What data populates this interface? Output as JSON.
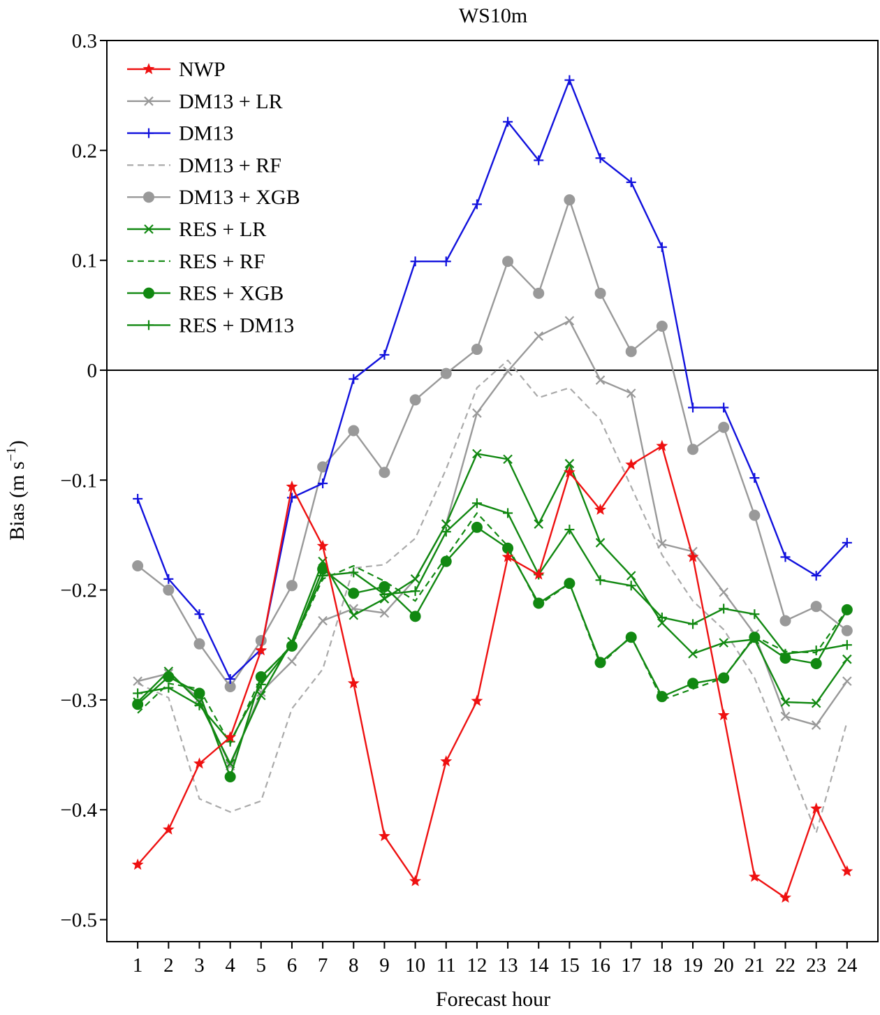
{
  "chart_data": {
    "type": "line",
    "title": "WS10m",
    "xlabel": "Forecast hour",
    "ylabel": "Bias (m s",
    "ylabel_superscript": "−1",
    "ylabel_suffix": ")",
    "x": [
      1,
      2,
      3,
      4,
      5,
      6,
      7,
      8,
      9,
      10,
      11,
      12,
      13,
      14,
      15,
      16,
      17,
      18,
      19,
      20,
      21,
      22,
      23,
      24
    ],
    "xlim": [
      0,
      25
    ],
    "ylim": [
      -0.52,
      0.3
    ],
    "yticks": [
      0.3,
      0.2,
      0.1,
      0,
      -0.1,
      -0.2,
      -0.3,
      -0.4,
      -0.5
    ],
    "ytick_labels": [
      "0.3",
      "0.2",
      "0.1",
      "0",
      "−0.1",
      "−0.2",
      "−0.3",
      "−0.4",
      "−0.5"
    ],
    "zero_line": true,
    "grid": false,
    "legend_position": "top-left",
    "series": [
      {
        "name": "NWP",
        "color": "#ee1111",
        "dash": "solid",
        "marker": "star",
        "values": [
          -0.45,
          -0.418,
          -0.358,
          -0.334,
          -0.255,
          -0.106,
          -0.16,
          -0.285,
          -0.424,
          -0.465,
          -0.356,
          -0.301,
          -0.17,
          -0.186,
          -0.093,
          -0.127,
          -0.086,
          -0.069,
          -0.17,
          -0.314,
          -0.461,
          -0.48,
          -0.399,
          -0.456
        ]
      },
      {
        "name": "DM13 + LR",
        "color": "#999999",
        "dash": "solid",
        "marker": "x",
        "values": [
          -0.283,
          -0.276,
          -0.299,
          -0.36,
          -0.293,
          -0.265,
          -0.228,
          -0.217,
          -0.221,
          -0.19,
          -0.14,
          -0.039,
          -0.001,
          0.031,
          0.045,
          -0.009,
          -0.021,
          -0.158,
          -0.165,
          -0.202,
          -0.24,
          -0.315,
          -0.323,
          -0.283
        ]
      },
      {
        "name": "DM13",
        "color": "#1111dd",
        "dash": "solid",
        "marker": "plus",
        "values": [
          -0.117,
          -0.19,
          -0.222,
          -0.281,
          -0.254,
          -0.116,
          -0.103,
          -0.008,
          0.014,
          0.099,
          0.099,
          0.151,
          0.226,
          0.191,
          0.264,
          0.193,
          0.171,
          0.112,
          -0.034,
          -0.034,
          -0.098,
          -0.17,
          -0.187,
          -0.157
        ]
      },
      {
        "name": "DM13 + RF",
        "color": "#aaaaaa",
        "dash": "dashed",
        "marker": "none",
        "values": [
          -0.285,
          -0.298,
          -0.39,
          -0.402,
          -0.392,
          -0.308,
          -0.272,
          -0.18,
          -0.177,
          -0.153,
          -0.09,
          -0.016,
          0.009,
          -0.025,
          -0.016,
          -0.045,
          -0.106,
          -0.168,
          -0.21,
          -0.236,
          -0.28,
          -0.349,
          -0.421,
          -0.32
        ]
      },
      {
        "name": "DM13 + XGB",
        "color": "#999999",
        "dash": "solid",
        "marker": "circle",
        "values": [
          -0.178,
          -0.2,
          -0.249,
          -0.288,
          -0.246,
          -0.196,
          -0.088,
          -0.055,
          -0.093,
          -0.027,
          -0.003,
          0.019,
          0.099,
          0.07,
          0.155,
          0.07,
          0.017,
          0.04,
          -0.072,
          -0.052,
          -0.132,
          -0.228,
          -0.215,
          -0.237
        ]
      },
      {
        "name": "RES + LR",
        "color": "#118811",
        "dash": "solid",
        "marker": "x",
        "values": [
          -0.302,
          -0.274,
          -0.302,
          -0.358,
          -0.296,
          -0.247,
          -0.174,
          -0.223,
          -0.208,
          -0.19,
          -0.14,
          -0.076,
          -0.081,
          -0.14,
          -0.085,
          -0.157,
          -0.187,
          -0.23,
          -0.258,
          -0.248,
          -0.245,
          -0.302,
          -0.303,
          -0.263
        ]
      },
      {
        "name": "RES + RF",
        "color": "#118811",
        "dash": "dashed",
        "marker": "none",
        "values": [
          -0.312,
          -0.285,
          -0.29,
          -0.34,
          -0.28,
          -0.25,
          -0.19,
          -0.178,
          -0.192,
          -0.21,
          -0.17,
          -0.13,
          -0.16,
          -0.214,
          -0.194,
          -0.268,
          -0.242,
          -0.3,
          -0.29,
          -0.28,
          -0.242,
          -0.256,
          -0.257,
          -0.218
        ]
      },
      {
        "name": "RES + XGB",
        "color": "#118811",
        "dash": "solid",
        "marker": "circle",
        "values": [
          -0.304,
          -0.279,
          -0.294,
          -0.37,
          -0.279,
          -0.251,
          -0.181,
          -0.203,
          -0.197,
          -0.224,
          -0.174,
          -0.143,
          -0.162,
          -0.212,
          -0.194,
          -0.266,
          -0.243,
          -0.297,
          -0.285,
          -0.28,
          -0.243,
          -0.262,
          -0.267,
          -0.218
        ]
      },
      {
        "name": "RES + DM13",
        "color": "#118811",
        "dash": "solid",
        "marker": "plus",
        "values": [
          -0.294,
          -0.289,
          -0.305,
          -0.338,
          -0.286,
          -0.25,
          -0.187,
          -0.184,
          -0.204,
          -0.201,
          -0.147,
          -0.121,
          -0.13,
          -0.186,
          -0.145,
          -0.191,
          -0.196,
          -0.225,
          -0.231,
          -0.217,
          -0.222,
          -0.258,
          -0.255,
          -0.25
        ]
      }
    ]
  }
}
